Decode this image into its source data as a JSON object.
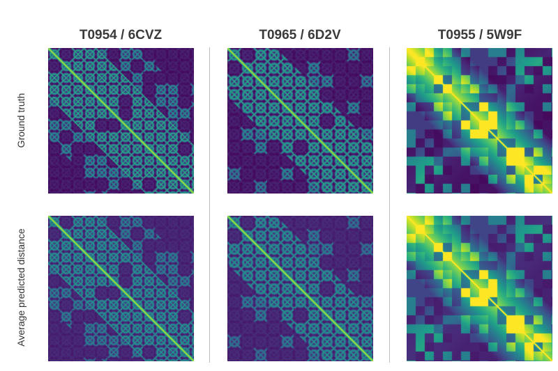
{
  "columns": [
    {
      "title": "T0954 / 6CVZ"
    },
    {
      "title": "T0965 / 6D2V"
    },
    {
      "title": "T0955 / 5W9F"
    }
  ],
  "rows": [
    {
      "label": "Ground truth"
    },
    {
      "label": "Average predicted distance"
    }
  ],
  "colormap": "viridis",
  "colors": {
    "low": "#440154",
    "mid": "#21918c",
    "high": "#fde725"
  }
}
